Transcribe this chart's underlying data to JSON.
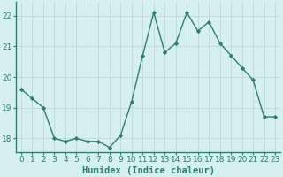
{
  "x": [
    0,
    1,
    2,
    3,
    4,
    5,
    6,
    7,
    8,
    9,
    10,
    11,
    12,
    13,
    14,
    15,
    16,
    17,
    18,
    19,
    20,
    21,
    22,
    23
  ],
  "y": [
    19.6,
    19.3,
    19.0,
    18.0,
    17.9,
    18.0,
    17.9,
    17.9,
    17.7,
    18.1,
    19.2,
    20.7,
    22.1,
    20.8,
    21.1,
    22.1,
    21.5,
    21.8,
    21.1,
    20.7,
    20.3,
    19.9,
    18.7,
    18.7
  ],
  "line_color": "#2e7d6e",
  "marker": "D",
  "marker_size": 2.2,
  "linewidth": 1.0,
  "xlabel": "Humidex (Indice chaleur)",
  "xlabel_fontsize": 7.5,
  "ylabel_ticks": [
    18,
    19,
    20,
    21,
    22
  ],
  "xtick_labels": [
    "0",
    "1",
    "2",
    "3",
    "4",
    "5",
    "6",
    "7",
    "8",
    "9",
    "10",
    "11",
    "12",
    "13",
    "14",
    "15",
    "16",
    "17",
    "18",
    "19",
    "20",
    "21",
    "22",
    "23"
  ],
  "ylim": [
    17.55,
    22.45
  ],
  "xlim": [
    -0.5,
    23.5
  ],
  "bg_color": "#d6f0ee",
  "grid_color": "#c0d8d8",
  "tick_fontsize": 6.5
}
